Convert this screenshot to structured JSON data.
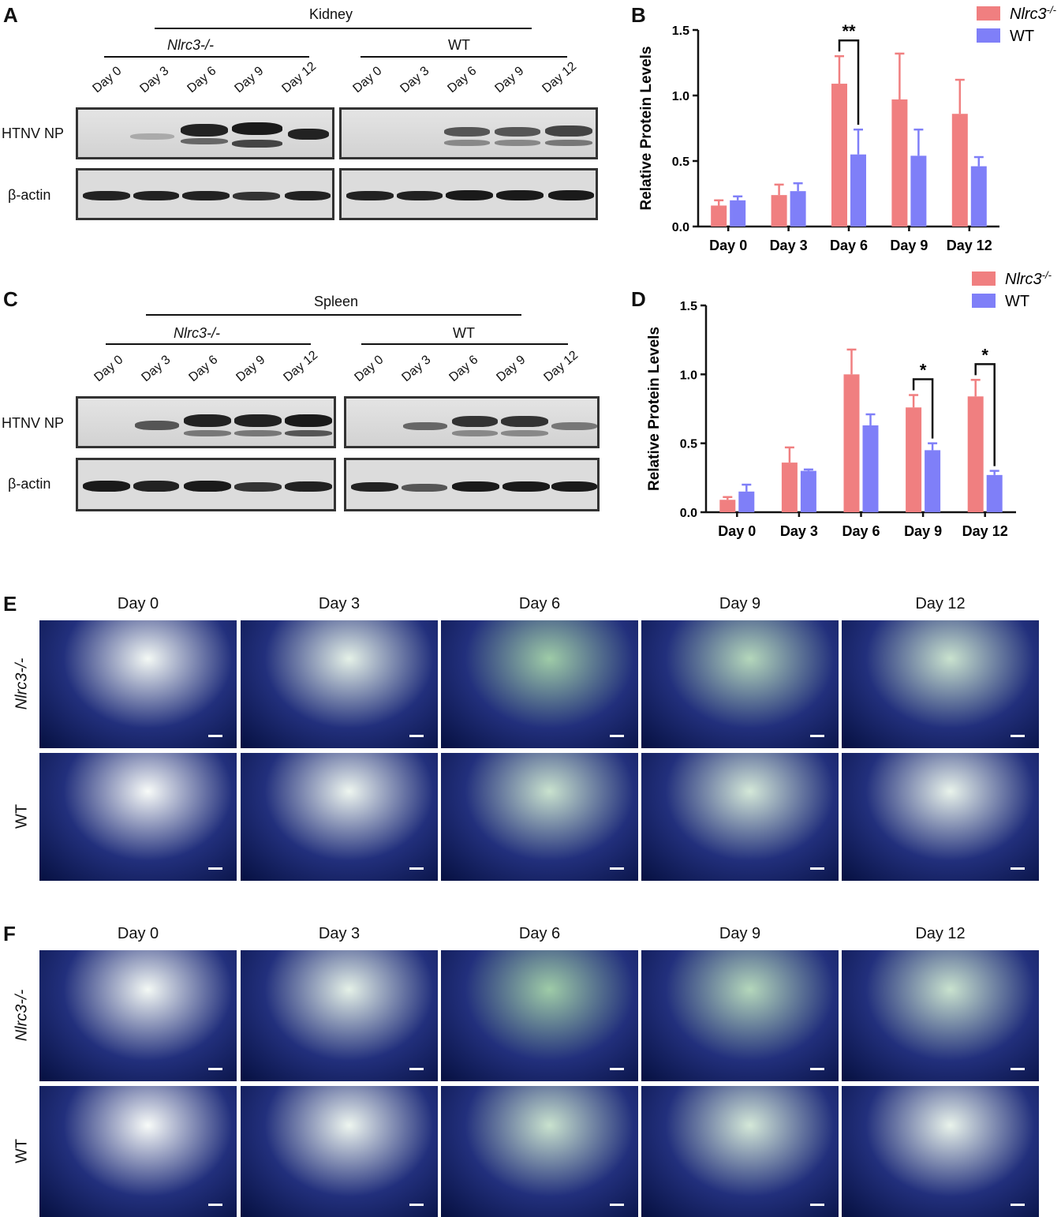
{
  "panels": {
    "A": {
      "label": "A",
      "tissue": "Kidney",
      "group1": "Nlrc3-/-",
      "group2": "WT",
      "row1": "HTNV NP",
      "row2": "β-actin",
      "lanes": [
        "Day 0",
        "Day 3",
        "Day 6",
        "Day 9",
        "Day 12"
      ]
    },
    "C": {
      "label": "C",
      "tissue": "Spleen",
      "group1": "Nlrc3-/-",
      "group2": "WT",
      "row1": "HTNV NP",
      "row2": "β-actin",
      "lanes": [
        "Day 0",
        "Day 3",
        "Day 6",
        "Day 9",
        "Day 12"
      ]
    },
    "E": {
      "label": "E",
      "days": [
        "Day 0",
        "Day 3",
        "Day 6",
        "Day 9",
        "Day 12"
      ],
      "row1": "Nlrc3-/-",
      "row2": "WT"
    },
    "F": {
      "label": "F",
      "days": [
        "Day 0",
        "Day 3",
        "Day 6",
        "Day 9",
        "Day 12"
      ],
      "row1": "Nlrc3-/-",
      "row2": "WT"
    }
  },
  "chart_data": [
    {
      "panel": "B",
      "type": "bar",
      "ylabel": "Relative Protein Levels",
      "ylim": [
        0,
        1.5
      ],
      "yticks": [
        "0.0",
        "0.5",
        "1.0",
        "1.5"
      ],
      "categories": [
        "Day 0",
        "Day 3",
        "Day 6",
        "Day 9",
        "Day 12"
      ],
      "legend_placement": "top-right",
      "series": [
        {
          "name": "Nlrc3",
          "sup": "-/-",
          "color": "#f07f80",
          "values": [
            0.16,
            0.24,
            1.09,
            0.97,
            0.86
          ],
          "errors": [
            0.04,
            0.08,
            0.21,
            0.35,
            0.26
          ]
        },
        {
          "name": "WT",
          "color": "#7f7ff8",
          "values": [
            0.2,
            0.27,
            0.55,
            0.54,
            0.46
          ],
          "errors": [
            0.03,
            0.06,
            0.19,
            0.2,
            0.07
          ]
        }
      ],
      "annotations": [
        {
          "category": "Day 6",
          "text": "**"
        }
      ]
    },
    {
      "panel": "D",
      "type": "bar",
      "ylabel": "Relative Protein Levels",
      "ylim": [
        0,
        1.5
      ],
      "yticks": [
        "0.0",
        "0.5",
        "1.0",
        "1.5"
      ],
      "categories": [
        "Day 0",
        "Day 3",
        "Day 6",
        "Day 9",
        "Day 12"
      ],
      "legend_placement": "top-right",
      "series": [
        {
          "name": "Nlrc3",
          "sup": "-/-",
          "color": "#f07f80",
          "values": [
            0.09,
            0.36,
            1.0,
            0.76,
            0.84
          ],
          "errors": [
            0.02,
            0.11,
            0.18,
            0.09,
            0.12
          ]
        },
        {
          "name": "WT",
          "color": "#7f7ff8",
          "values": [
            0.15,
            0.3,
            0.63,
            0.45,
            0.27
          ],
          "errors": [
            0.05,
            0.01,
            0.08,
            0.05,
            0.03
          ]
        }
      ],
      "annotations": [
        {
          "category": "Day 9",
          "text": "*"
        },
        {
          "category": "Day 12",
          "text": "*"
        }
      ]
    }
  ]
}
